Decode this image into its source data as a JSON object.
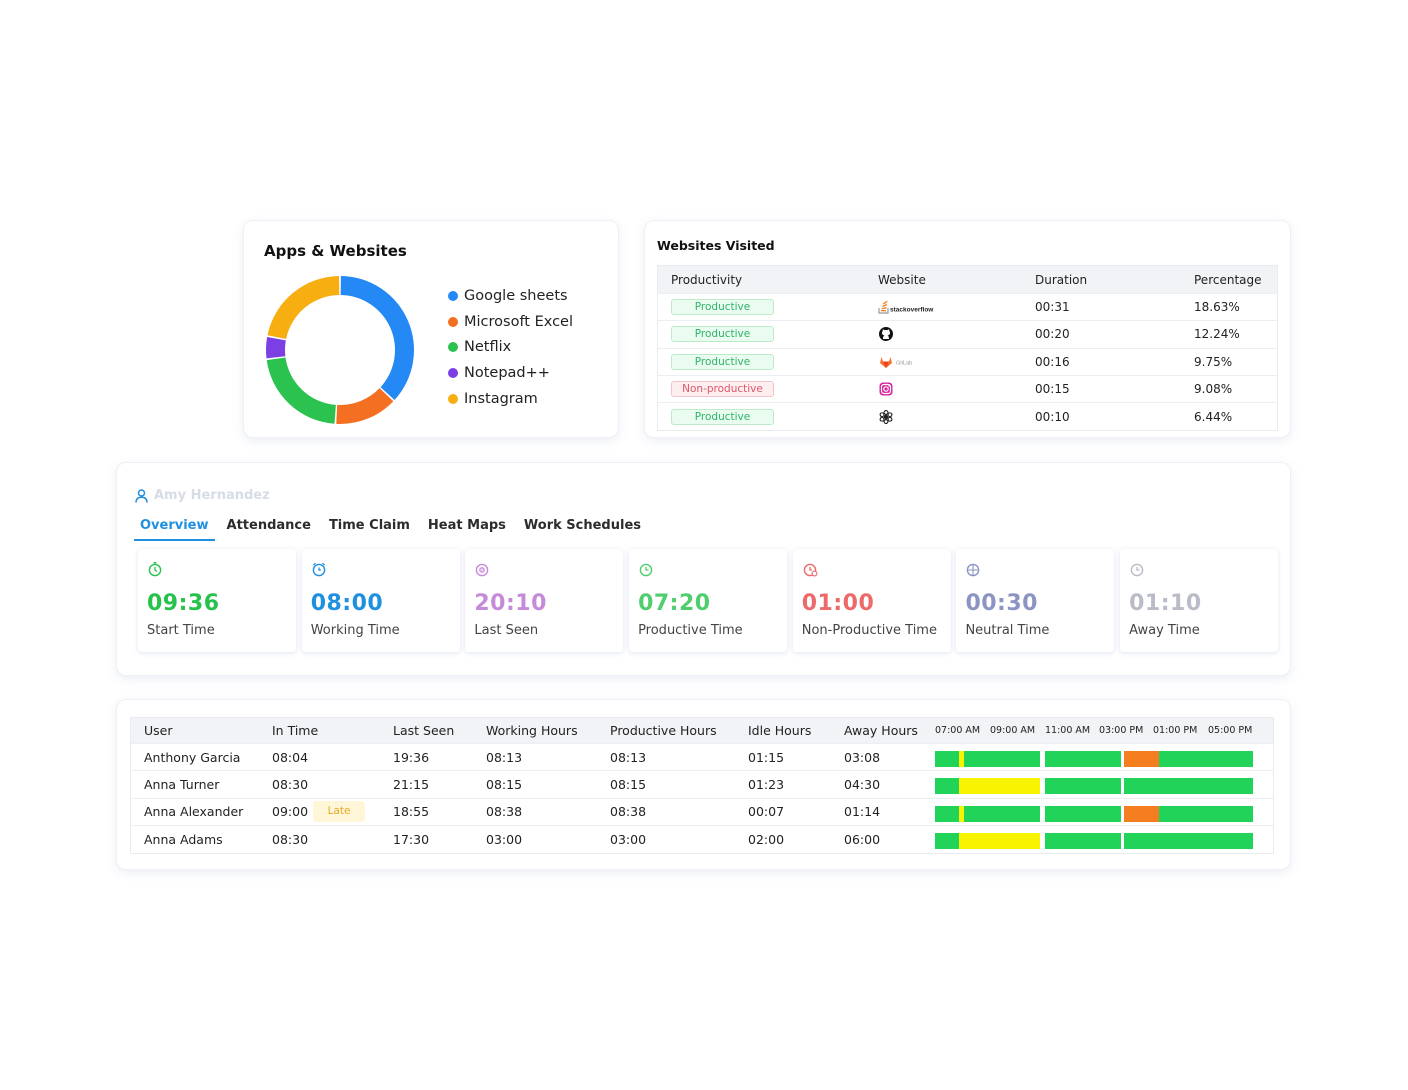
{
  "apps": {
    "title": "Apps & Websites",
    "legend": [
      {
        "name": "Google sheets",
        "color": "#2489f5",
        "share": 0.37
      },
      {
        "name": "Microsoft Excel",
        "color": "#f56f22",
        "share": 0.14
      },
      {
        "name": "Netflix",
        "color": "#2cc24f",
        "share": 0.22
      },
      {
        "name": "Notepad++",
        "color": "#7b3fe4",
        "share": 0.05
      },
      {
        "name": "Instagram",
        "color": "#f6ae10",
        "share": 0.22
      }
    ]
  },
  "websites": {
    "title": "Websites Visited",
    "headers": {
      "productivity": "Productivity",
      "website": "Website",
      "duration": "Duration",
      "percentage": "Percentage"
    },
    "rows": [
      {
        "productivity": "Productive",
        "status": "good",
        "icon": "stackoverflow-icon",
        "site_text": "stackoverflow",
        "duration": "00:31",
        "percentage": "18.63%"
      },
      {
        "productivity": "Productive",
        "status": "good",
        "icon": "github-icon",
        "site_text": "",
        "duration": "00:20",
        "percentage": "12.24%"
      },
      {
        "productivity": "Productive",
        "status": "good",
        "icon": "gitlab-icon",
        "site_text": "GitLab",
        "duration": "00:16",
        "percentage": "9.75%"
      },
      {
        "productivity": "Non-productive",
        "status": "bad",
        "icon": "instagram-icon",
        "site_text": "",
        "duration": "00:15",
        "percentage": "9.08%"
      },
      {
        "productivity": "Productive",
        "status": "good",
        "icon": "openai-icon",
        "site_text": "",
        "duration": "00:10",
        "percentage": "6.44%"
      }
    ]
  },
  "profile": {
    "user": "Amy Hernandez",
    "tabs": [
      "Overview",
      "Attendance",
      "Time Claim",
      "Heat Maps",
      "Work Schedules"
    ],
    "active_tab": "Overview",
    "kpis": [
      {
        "value": "09:36",
        "label": "Start Time",
        "color": "#27c24c",
        "icon": "stopwatch-icon"
      },
      {
        "value": "08:00",
        "label": "Working Time",
        "color": "#1f8fe0",
        "icon": "alarm-clock-icon"
      },
      {
        "value": "20:10",
        "label": "Last Seen",
        "color": "#c58ad8",
        "icon": "eye-icon"
      },
      {
        "value": "07:20",
        "label": "Productive Time",
        "color": "#4fce6e",
        "icon": "productive-clock-icon"
      },
      {
        "value": "01:00",
        "label": "Non-Productive Time",
        "color": "#ec6a6a",
        "icon": "non-productive-clock-icon"
      },
      {
        "value": "00:30",
        "label": "Neutral Time",
        "color": "#8c94c4",
        "icon": "neutral-clock-icon"
      },
      {
        "value": "01:10",
        "label": "Away Time",
        "color": "#b9bcc6",
        "icon": "away-clock-icon"
      }
    ]
  },
  "attendance": {
    "headers": {
      "user": "User",
      "in_time": "In Time",
      "last_seen": "Last Seen",
      "working": "Working Hours",
      "productive": "Productive Hours",
      "idle": "Idle Hours",
      "away": "Away Hours"
    },
    "timeline_ticks": [
      "07:00 AM",
      "09:00 AM",
      "11:00 AM",
      "03:00 PM",
      "01:00 PM",
      "05:00 PM"
    ],
    "timeline_colors": {
      "green": "#22d35a",
      "yellow": "#f8f300",
      "orange": "#f47d20"
    },
    "rows": [
      {
        "user": "Anthony Garcia",
        "in_time": "08:04",
        "late": "",
        "last_seen": "19:36",
        "working": "08:13",
        "productive": "08:13",
        "idle": "01:15",
        "away": "03:08",
        "timeline": [
          {
            "c": "green",
            "s": 0,
            "e": 0.075
          },
          {
            "c": "yellow",
            "s": 0.075,
            "e": 0.09
          },
          {
            "c": "green",
            "s": 0.09,
            "e": 0.33
          },
          {
            "c": "green",
            "s": 0.345,
            "e": 0.585
          },
          {
            "c": "orange",
            "s": 0.595,
            "e": 0.705
          },
          {
            "c": "green",
            "s": 0.705,
            "e": 1
          }
        ]
      },
      {
        "user": "Anna Turner",
        "in_time": "08:30",
        "late": "",
        "last_seen": "21:15",
        "working": "08:15",
        "productive": "08:15",
        "idle": "01:23",
        "away": "04:30",
        "timeline": [
          {
            "c": "green",
            "s": 0,
            "e": 0.075
          },
          {
            "c": "yellow",
            "s": 0.075,
            "e": 0.33
          },
          {
            "c": "green",
            "s": 0.345,
            "e": 0.585
          },
          {
            "c": "green",
            "s": 0.595,
            "e": 1
          }
        ]
      },
      {
        "user": "Anna Alexander",
        "in_time": "09:00",
        "late": "Late",
        "last_seen": "18:55",
        "working": "08:38",
        "productive": "08:38",
        "idle": "00:07",
        "away": "01:14",
        "timeline": [
          {
            "c": "green",
            "s": 0,
            "e": 0.075
          },
          {
            "c": "yellow",
            "s": 0.075,
            "e": 0.09
          },
          {
            "c": "green",
            "s": 0.09,
            "e": 0.33
          },
          {
            "c": "green",
            "s": 0.345,
            "e": 0.585
          },
          {
            "c": "orange",
            "s": 0.595,
            "e": 0.705
          },
          {
            "c": "green",
            "s": 0.705,
            "e": 1
          }
        ]
      },
      {
        "user": "Anna Adams",
        "in_time": "08:30",
        "late": "",
        "last_seen": "17:30",
        "working": "03:00",
        "productive": "03:00",
        "idle": "02:00",
        "away": "06:00",
        "timeline": [
          {
            "c": "green",
            "s": 0,
            "e": 0.075
          },
          {
            "c": "yellow",
            "s": 0.075,
            "e": 0.33
          },
          {
            "c": "green",
            "s": 0.345,
            "e": 0.585
          },
          {
            "c": "green",
            "s": 0.595,
            "e": 1
          }
        ]
      }
    ]
  }
}
